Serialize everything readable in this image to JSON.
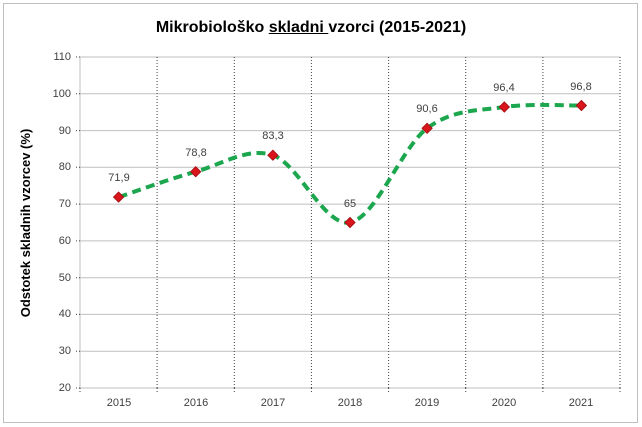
{
  "title": {
    "prefix": "Mikrobiološko ",
    "underlined": "skladni ",
    "suffix": "vzorci (2015-2021)"
  },
  "chart_data": {
    "type": "line",
    "title": "Mikrobiološko skladni vzorci (2015-2021)",
    "categories": [
      "2015",
      "2016",
      "2017",
      "2018",
      "2019",
      "2020",
      "2021"
    ],
    "values": [
      71.9,
      78.8,
      83.3,
      65,
      90.6,
      96.4,
      96.8
    ],
    "point_labels": [
      "71,9",
      "78,8",
      "83,3",
      "65",
      "90,6",
      "96,4",
      "96,8"
    ],
    "xlabel": "",
    "ylabel": "Odstotek skladnih vzorcev (%)",
    "ylim": [
      20,
      110
    ],
    "ytick_step": 10,
    "ytick_labels": [
      "20",
      "30",
      "40",
      "50",
      "60",
      "70",
      "80",
      "90",
      "100",
      "110"
    ],
    "line_style": "dashed-smooth",
    "line_color": "#1ca64e",
    "marker": "diamond",
    "marker_color": "#da151c",
    "marker_edge_color": "#a81014",
    "grid": {
      "horizontal": "solid",
      "vertical": "dotted",
      "h_color": "#bfbfbf",
      "v_color": "#404040"
    },
    "legend": "none"
  }
}
